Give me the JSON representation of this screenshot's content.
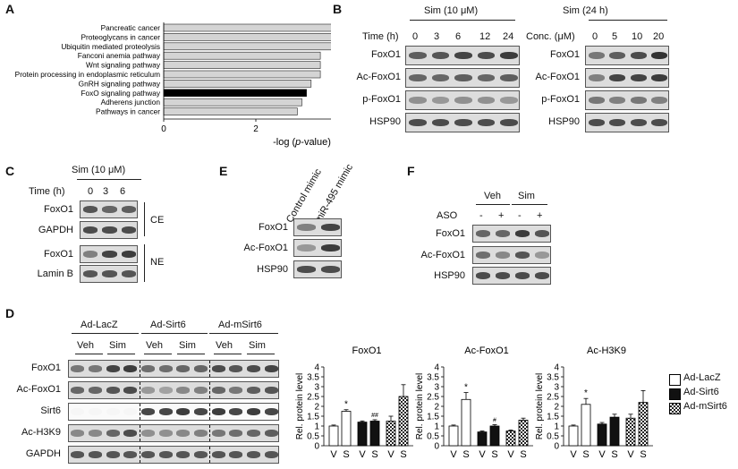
{
  "panel_labels": {
    "a": "A",
    "b": "B",
    "c": "C",
    "d": "D",
    "e": "E",
    "f": "F"
  },
  "panel_a": {
    "terms": [
      "Pancreatic cancer",
      "Proteoglycans in cancer",
      "Ubiquitin mediated proteolysis",
      "Fanconi anemia pathway",
      "Wnt signaling pathway",
      "Protein processing in endoplasmic reticulum",
      "GnRH signaling pathway",
      "FoxO signaling pathway",
      "Adherens junction",
      "Pathways in cancer"
    ],
    "values": [
      5.4,
      4.3,
      3.7,
      3.4,
      3.4,
      3.4,
      3.2,
      3.1,
      3.0,
      2.9
    ],
    "highlight_index": 7,
    "xticks": [
      "0",
      "2",
      "4",
      "6"
    ],
    "xlabel_pre": "-log (",
    "xlabel_italic": "p",
    "xlabel_post": "-value)",
    "xlim": [
      0,
      6
    ]
  },
  "panel_b": {
    "left_title": "Sim (10 μM)",
    "left_axis": "Time (h)",
    "left_ticks": [
      "0",
      "3",
      "6",
      "12",
      "24"
    ],
    "right_title": "Sim (24 h)",
    "right_axis": "Conc. (μM)",
    "right_ticks": [
      "0",
      "5",
      "10",
      "20"
    ],
    "rows": [
      "FoxO1",
      "Ac-FoxO1",
      "p-FoxO1",
      "HSP90"
    ]
  },
  "panel_c": {
    "title": "Sim (10 μM)",
    "axis": "Time (h)",
    "ticks": [
      "0",
      "3",
      "6"
    ],
    "rows": [
      "FoxO1",
      "GAPDH",
      "FoxO1",
      "Lamin B"
    ],
    "group_ce": "CE",
    "group_ne": "NE"
  },
  "panel_e": {
    "col1": "Control mimic",
    "col2": "miR-495 mimic",
    "rows": [
      "FoxO1",
      "Ac-FoxO1",
      "HSP90"
    ]
  },
  "panel_f": {
    "groups": [
      "Veh",
      "Sim"
    ],
    "aso_label": "ASO",
    "aso_marks": [
      "-",
      "+",
      "-",
      "+"
    ],
    "rows": [
      "FoxO1",
      "Ac-FoxO1",
      "HSP90"
    ]
  },
  "panel_d": {
    "groups": [
      "Ad-LacZ",
      "Ad-Sirt6",
      "Ad-mSirt6"
    ],
    "subgroups": [
      "Veh",
      "Sim",
      "Veh",
      "Sim",
      "Veh",
      "Sim"
    ],
    "rows": [
      "FoxO1",
      "Ac-FoxO1",
      "Sirt6",
      "Ac-H3K9",
      "GAPDH"
    ],
    "legend": [
      "Ad-LacZ",
      "Ad-Sirt6",
      "Ad-mSirt6"
    ]
  },
  "chart_data": [
    {
      "type": "bar",
      "title": "FoxO1",
      "ylabel": "Rel. protein level",
      "ylim": [
        0,
        4
      ],
      "yticks": [
        "0",
        "0.5",
        "1",
        "1.5",
        "2",
        "2.5",
        "3",
        "3.5",
        "4"
      ],
      "x_labels": [
        "V",
        "S",
        "V",
        "S",
        "V",
        "S"
      ],
      "series": [
        {
          "name": "Ad-LacZ",
          "values": [
            1.0,
            1.75
          ],
          "errors": [
            0.05,
            0.08
          ]
        },
        {
          "name": "Ad-Sirt6",
          "values": [
            1.2,
            1.25
          ],
          "errors": [
            0.06,
            0.07
          ]
        },
        {
          "name": "Ad-mSirt6",
          "values": [
            1.25,
            2.5
          ],
          "errors": [
            0.25,
            0.6
          ]
        }
      ],
      "annotations": [
        {
          "text": "*",
          "at": "Ad-LacZ S"
        },
        {
          "text": "##",
          "at": "Ad-Sirt6 S"
        }
      ]
    },
    {
      "type": "bar",
      "title": "Ac-FoxO1",
      "ylabel": "Rel. protein level",
      "ylim": [
        0,
        4
      ],
      "yticks": [
        "0",
        "0.5",
        "1",
        "1.5",
        "2",
        "2.5",
        "3",
        "3.5",
        "4"
      ],
      "x_labels": [
        "V",
        "S",
        "V",
        "S",
        "V",
        "S"
      ],
      "series": [
        {
          "name": "Ad-LacZ",
          "values": [
            1.0,
            2.35
          ],
          "errors": [
            0.05,
            0.35
          ]
        },
        {
          "name": "Ad-Sirt6",
          "values": [
            0.7,
            1.0
          ],
          "errors": [
            0.05,
            0.07
          ]
        },
        {
          "name": "Ad-mSirt6",
          "values": [
            0.75,
            1.3
          ],
          "errors": [
            0.05,
            0.1
          ]
        }
      ],
      "annotations": [
        {
          "text": "*",
          "at": "Ad-LacZ S"
        },
        {
          "text": "#",
          "at": "Ad-Sirt6 S"
        }
      ]
    },
    {
      "type": "bar",
      "title": "Ac-H3K9",
      "ylabel": "Rel. protein level",
      "ylim": [
        0,
        4
      ],
      "yticks": [
        "0",
        "0.5",
        "1",
        "1.5",
        "2",
        "2.5",
        "3",
        "3.5",
        "4"
      ],
      "x_labels": [
        "V",
        "S",
        "V",
        "S",
        "V",
        "S"
      ],
      "series": [
        {
          "name": "Ad-LacZ",
          "values": [
            1.0,
            2.1
          ],
          "errors": [
            0.05,
            0.3
          ]
        },
        {
          "name": "Ad-Sirt6",
          "values": [
            1.1,
            1.45
          ],
          "errors": [
            0.08,
            0.15
          ]
        },
        {
          "name": "Ad-mSirt6",
          "values": [
            1.4,
            2.2
          ],
          "errors": [
            0.2,
            0.6
          ]
        }
      ],
      "annotations": [
        {
          "text": "*",
          "at": "Ad-LacZ S"
        }
      ]
    }
  ]
}
